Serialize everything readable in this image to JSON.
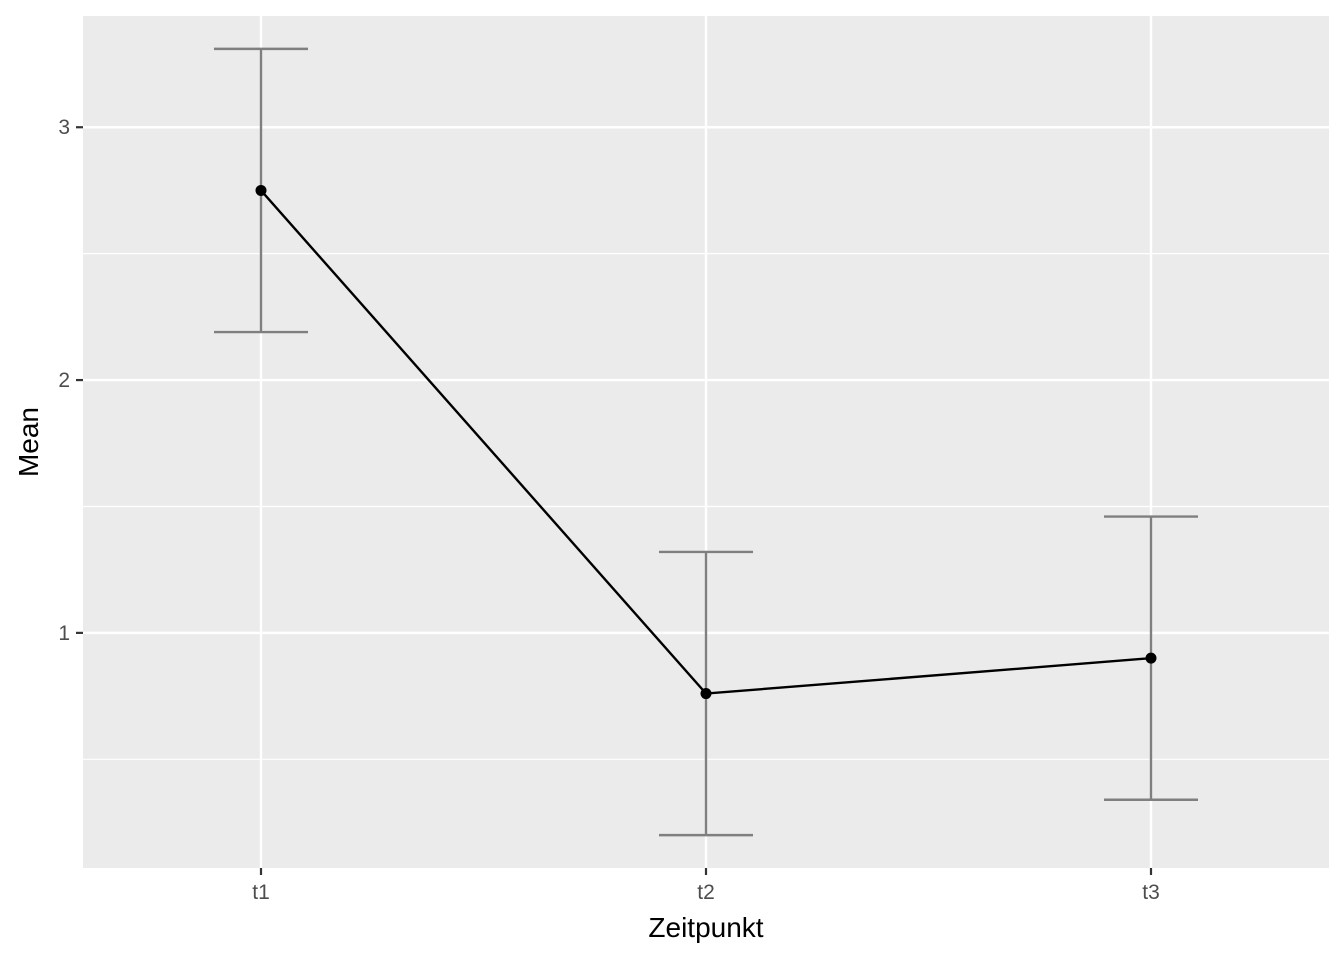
{
  "chart_data": {
    "type": "line",
    "title": "",
    "xlabel": "Zeitpunkt",
    "ylabel": "Mean",
    "categories": [
      "t1",
      "t2",
      "t3"
    ],
    "series": [
      {
        "values": [
          2.75,
          0.76,
          0.9
        ],
        "error_low": [
          2.19,
          0.2,
          0.34
        ],
        "error_high": [
          3.31,
          1.32,
          1.46
        ]
      }
    ],
    "y_ticks": [
      1,
      2,
      3
    ],
    "y_tick_labels": [
      "1",
      "2",
      "3"
    ],
    "ylim": [
      0.07,
      3.44
    ],
    "grid": true,
    "legend": "none",
    "colors": {
      "panel_background": "#ebebeb",
      "grid": "#ffffff",
      "line": "#000000",
      "error_bar": "#7f7f7f",
      "tick_text": "#4d4d4d",
      "tick_mark": "#333333"
    }
  }
}
